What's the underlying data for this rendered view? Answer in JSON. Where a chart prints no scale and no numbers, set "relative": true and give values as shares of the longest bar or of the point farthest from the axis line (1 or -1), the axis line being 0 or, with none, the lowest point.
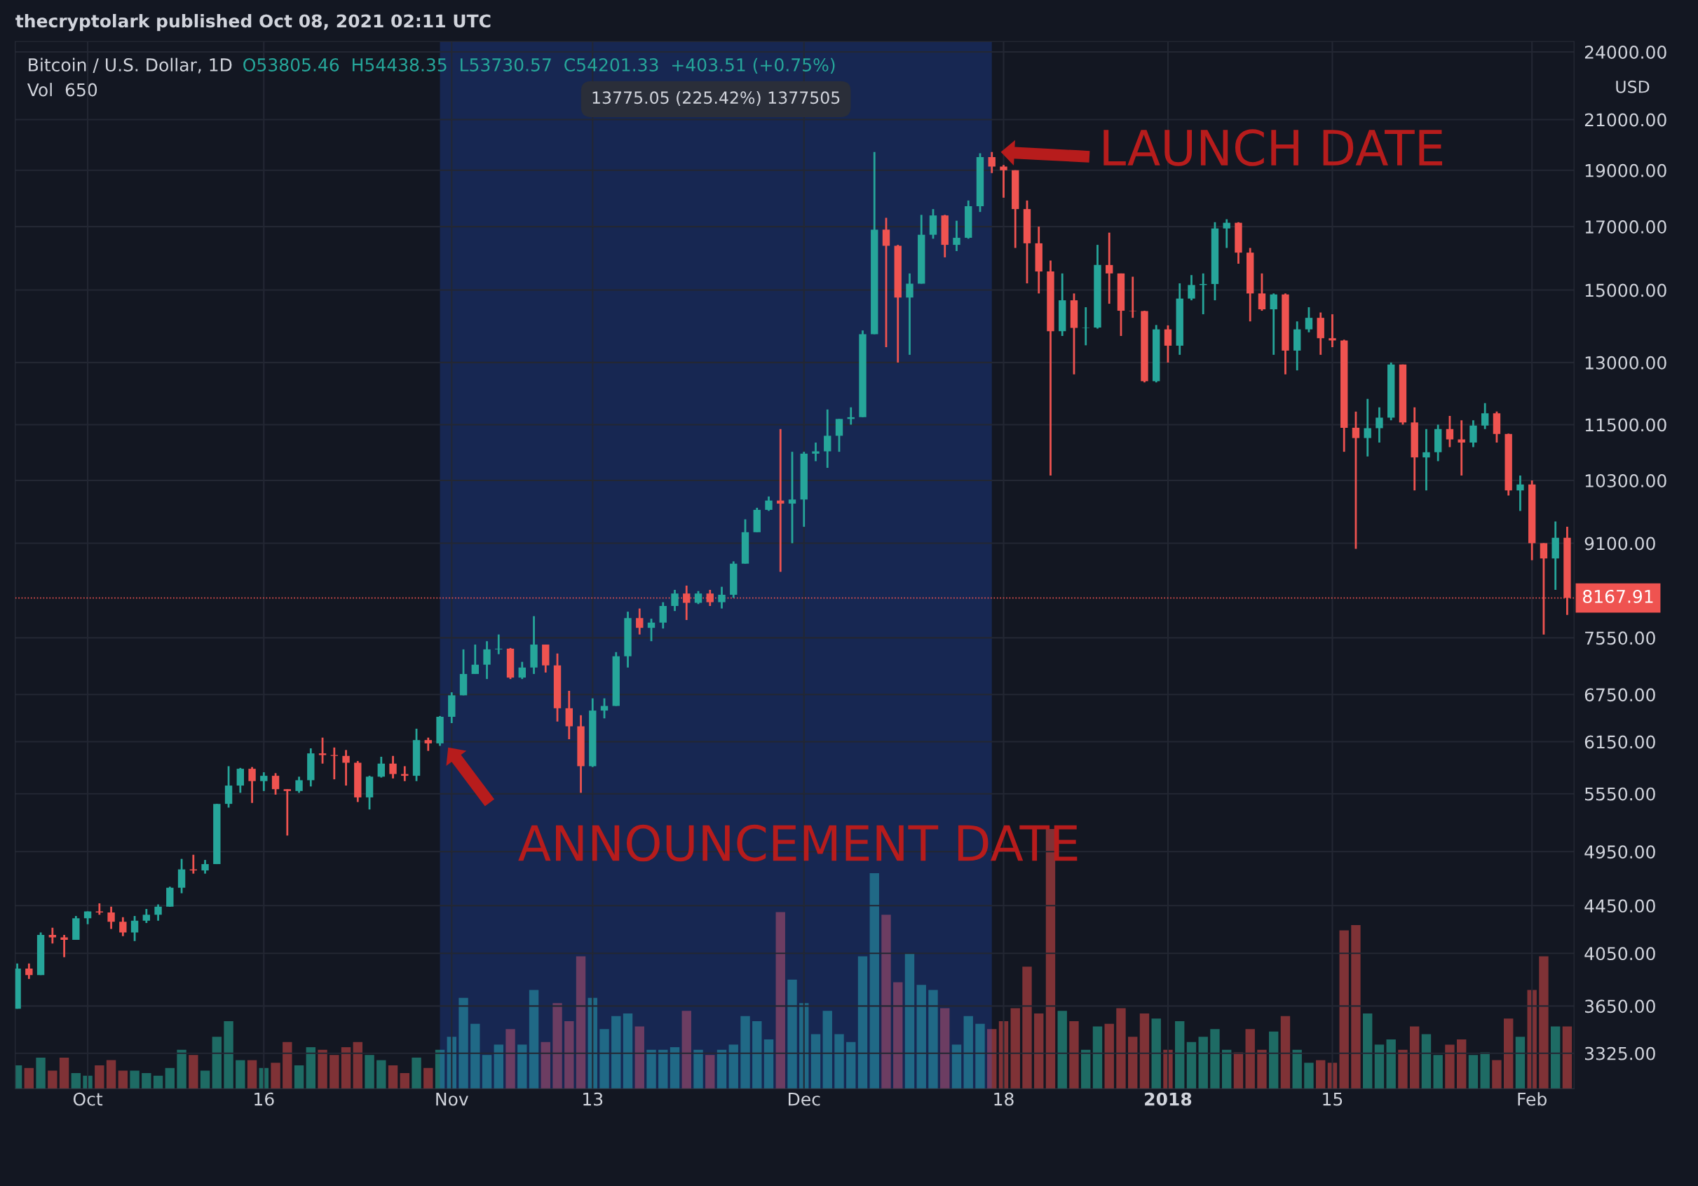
{
  "chart_data": [
    {
      "type": "candlestick",
      "title": "Bitcoin / U.S. Dollar, 1D",
      "subtitle": "O53805.46  H54438.35  L53730.57  C54201.33  +403.51 (+0.75%)",
      "ylabel": "USD",
      "annotations": [
        "thecryptolark published Oct 08, 2021 02:11 UTC",
        {
          "text": "LAUNCH DATE",
          "x": "2017-12-17",
          "y": 19700
        },
        {
          "text": "ANNOUNCEMENT DATE",
          "x": "2017-10-31",
          "y": 6100
        }
      ],
      "x": [
        "2017-09-25",
        "2017-09-26",
        "2017-09-27",
        "2017-09-28",
        "2017-09-29",
        "2017-09-30",
        "2017-10-01",
        "2017-10-02",
        "2017-10-03",
        "2017-10-04",
        "2017-10-05",
        "2017-10-06",
        "2017-10-07",
        "2017-10-08",
        "2017-10-09",
        "2017-10-10",
        "2017-10-11",
        "2017-10-12",
        "2017-10-13",
        "2017-10-14",
        "2017-10-15",
        "2017-10-16",
        "2017-10-17",
        "2017-10-18",
        "2017-10-19",
        "2017-10-20",
        "2017-10-21",
        "2017-10-22",
        "2017-10-23",
        "2017-10-24",
        "2017-10-25",
        "2017-10-26",
        "2017-10-27",
        "2017-10-28",
        "2017-10-29",
        "2017-10-30",
        "2017-10-31",
        "2017-11-01",
        "2017-11-02",
        "2017-11-03",
        "2017-11-04",
        "2017-11-05",
        "2017-11-06",
        "2017-11-07",
        "2017-11-08",
        "2017-11-09",
        "2017-11-10",
        "2017-11-11",
        "2017-11-12",
        "2017-11-13",
        "2017-11-14",
        "2017-11-15",
        "2017-11-16",
        "2017-11-17",
        "2017-11-18",
        "2017-11-19",
        "2017-11-20",
        "2017-11-21",
        "2017-11-22",
        "2017-11-23",
        "2017-11-24",
        "2017-11-25",
        "2017-11-26",
        "2017-11-27",
        "2017-11-28",
        "2017-11-29",
        "2017-11-30",
        "2017-12-01",
        "2017-12-02",
        "2017-12-03",
        "2017-12-04",
        "2017-12-05",
        "2017-12-06",
        "2017-12-07",
        "2017-12-08",
        "2017-12-09",
        "2017-12-10",
        "2017-12-11",
        "2017-12-12",
        "2017-12-13",
        "2017-12-14",
        "2017-12-15",
        "2017-12-16",
        "2017-12-17",
        "2017-12-18",
        "2017-12-19",
        "2017-12-20",
        "2017-12-21",
        "2017-12-22",
        "2017-12-23",
        "2017-12-24",
        "2017-12-25",
        "2017-12-26",
        "2017-12-27",
        "2017-12-28",
        "2017-12-29",
        "2017-12-30",
        "2017-12-31",
        "2018-01-01",
        "2018-01-02",
        "2018-01-03",
        "2018-01-04",
        "2018-01-05",
        "2018-01-06",
        "2018-01-07",
        "2018-01-08",
        "2018-01-09",
        "2018-01-10",
        "2018-01-11",
        "2018-01-12",
        "2018-01-13",
        "2018-01-14",
        "2018-01-15",
        "2018-01-16",
        "2018-01-17",
        "2018-01-18",
        "2018-01-19",
        "2018-01-20",
        "2018-01-21",
        "2018-01-22",
        "2018-01-23",
        "2018-01-24",
        "2018-01-25",
        "2018-01-26",
        "2018-01-27",
        "2018-01-28",
        "2018-01-29",
        "2018-01-30",
        "2018-01-31",
        "2018-02-01",
        "2018-02-02",
        "2018-02-03",
        "2018-02-04"
      ],
      "ohlc": [
        [
          3630,
          3970,
          3630,
          3930
        ],
        [
          3930,
          3970,
          3850,
          3880
        ],
        [
          3880,
          4220,
          3880,
          4200
        ],
        [
          4200,
          4260,
          4130,
          4180
        ],
        [
          4180,
          4200,
          4020,
          4160
        ],
        [
          4160,
          4360,
          4160,
          4340
        ],
        [
          4340,
          4400,
          4290,
          4400
        ],
        [
          4400,
          4470,
          4370,
          4390
        ],
        [
          4390,
          4440,
          4250,
          4310
        ],
        [
          4310,
          4350,
          4190,
          4220
        ],
        [
          4220,
          4360,
          4150,
          4320
        ],
        [
          4320,
          4420,
          4300,
          4370
        ],
        [
          4370,
          4460,
          4320,
          4440
        ],
        [
          4440,
          4620,
          4440,
          4610
        ],
        [
          4610,
          4880,
          4560,
          4780
        ],
        [
          4780,
          4920,
          4740,
          4770
        ],
        [
          4770,
          4870,
          4740,
          4830
        ],
        [
          4830,
          5440,
          4830,
          5440
        ],
        [
          5440,
          5860,
          5400,
          5640
        ],
        [
          5640,
          5840,
          5560,
          5830
        ],
        [
          5830,
          5850,
          5450,
          5690
        ],
        [
          5690,
          5790,
          5580,
          5750
        ],
        [
          5750,
          5780,
          5540,
          5600
        ],
        [
          5600,
          5600,
          5110,
          5580
        ],
        [
          5580,
          5740,
          5560,
          5700
        ],
        [
          5700,
          6070,
          5630,
          6010
        ],
        [
          6010,
          6200,
          5890,
          5990
        ],
        [
          5990,
          6080,
          5710,
          5980
        ],
        [
          5980,
          6050,
          5640,
          5900
        ],
        [
          5900,
          5920,
          5460,
          5510
        ],
        [
          5510,
          5750,
          5380,
          5740
        ],
        [
          5740,
          5970,
          5730,
          5890
        ],
        [
          5890,
          5980,
          5720,
          5770
        ],
        [
          5770,
          5860,
          5690,
          5750
        ],
        [
          5750,
          6310,
          5690,
          6170
        ],
        [
          6170,
          6200,
          6040,
          6130
        ],
        [
          6130,
          6470,
          6100,
          6460
        ],
        [
          6460,
          6780,
          6380,
          6740
        ],
        [
          6740,
          7380,
          6740,
          7030
        ],
        [
          7030,
          7450,
          7030,
          7160
        ],
        [
          7160,
          7500,
          6960,
          7380
        ],
        [
          7380,
          7600,
          7310,
          7390
        ],
        [
          7390,
          7400,
          6960,
          6980
        ],
        [
          6980,
          7200,
          6960,
          7120
        ],
        [
          7120,
          7880,
          7030,
          7450
        ],
        [
          7450,
          7450,
          7050,
          7150
        ],
        [
          7150,
          7320,
          6400,
          6570
        ],
        [
          6570,
          6800,
          6180,
          6340
        ],
        [
          6340,
          6480,
          5560,
          5860
        ],
        [
          5860,
          6700,
          5850,
          6540
        ],
        [
          6540,
          6700,
          6440,
          6600
        ],
        [
          6600,
          7340,
          6600,
          7280
        ],
        [
          7280,
          7950,
          7120,
          7850
        ],
        [
          7850,
          8000,
          7600,
          7700
        ],
        [
          7700,
          7840,
          7500,
          7780
        ],
        [
          7780,
          8100,
          7690,
          8040
        ],
        [
          8040,
          8300,
          7960,
          8240
        ],
        [
          8240,
          8370,
          7820,
          8090
        ],
        [
          8090,
          8280,
          8070,
          8240
        ],
        [
          8240,
          8300,
          8040,
          8100
        ],
        [
          8100,
          8350,
          8000,
          8220
        ],
        [
          8220,
          8780,
          8170,
          8740
        ],
        [
          8740,
          9540,
          8740,
          9300
        ],
        [
          9300,
          9760,
          9300,
          9720
        ],
        [
          9720,
          9980,
          9700,
          9900
        ],
        [
          9900,
          11400,
          8600,
          9840
        ],
        [
          9840,
          10900,
          9100,
          9920
        ],
        [
          9920,
          10900,
          9400,
          10860
        ],
        [
          10860,
          11100,
          10700,
          10910
        ],
        [
          10910,
          11850,
          10560,
          11250
        ],
        [
          11250,
          11630,
          10900,
          11630
        ],
        [
          11630,
          11900,
          11500,
          11670
        ],
        [
          11670,
          13850,
          11670,
          13750
        ],
        [
          13750,
          19700,
          13750,
          16900
        ],
        [
          16900,
          17300,
          13400,
          16370
        ],
        [
          16370,
          16400,
          13000,
          14780
        ],
        [
          14780,
          15500,
          13200,
          15190
        ],
        [
          15190,
          17400,
          15190,
          16730
        ],
        [
          16730,
          17600,
          16600,
          17380
        ],
        [
          17380,
          17400,
          16000,
          16400
        ],
        [
          16400,
          17200,
          16200,
          16630
        ],
        [
          16630,
          17900,
          16600,
          17700
        ],
        [
          17700,
          19650,
          17500,
          19500
        ],
        [
          19500,
          19700,
          18900,
          19140
        ],
        [
          19140,
          19200,
          18000,
          19000
        ],
        [
          19000,
          19000,
          16300,
          17600
        ],
        [
          17600,
          17900,
          15200,
          16450
        ],
        [
          16450,
          17000,
          14900,
          15560
        ],
        [
          15560,
          15900,
          10400,
          13830
        ],
        [
          13830,
          15500,
          13700,
          14700
        ],
        [
          14700,
          14900,
          12700,
          13920
        ],
        [
          13920,
          14500,
          13450,
          13930
        ],
        [
          13930,
          16400,
          13900,
          15760
        ],
        [
          15760,
          16800,
          14600,
          15500
        ],
        [
          15500,
          15500,
          13700,
          14400
        ],
        [
          14400,
          15400,
          14200,
          14390
        ],
        [
          14390,
          14400,
          12500,
          12530
        ],
        [
          12530,
          14000,
          12500,
          13880
        ],
        [
          13880,
          13990,
          13000,
          13440
        ],
        [
          13440,
          15200,
          13200,
          14750
        ],
        [
          14750,
          15450,
          14700,
          15150
        ],
        [
          15150,
          15500,
          14300,
          15180
        ],
        [
          15180,
          17150,
          14700,
          16940
        ],
        [
          16940,
          17250,
          16300,
          17130
        ],
        [
          17130,
          17150,
          15800,
          16150
        ],
        [
          16150,
          16300,
          14100,
          14900
        ],
        [
          14900,
          15500,
          14400,
          14440
        ],
        [
          14440,
          14900,
          13200,
          14870
        ],
        [
          14870,
          14900,
          12700,
          13310
        ],
        [
          13310,
          14100,
          12800,
          13880
        ],
        [
          13880,
          14500,
          13800,
          14200
        ],
        [
          14200,
          14350,
          13200,
          13640
        ],
        [
          13640,
          14300,
          13400,
          13580
        ],
        [
          13580,
          13600,
          10900,
          11430
        ],
        [
          11430,
          11800,
          9000,
          11200
        ],
        [
          11200,
          12100,
          10800,
          11420
        ],
        [
          11420,
          11900,
          11100,
          11660
        ],
        [
          11660,
          13000,
          11600,
          12950
        ],
        [
          12950,
          12950,
          11500,
          11550
        ],
        [
          11550,
          11900,
          10100,
          10780
        ],
        [
          10780,
          11400,
          10100,
          10890
        ],
        [
          10890,
          11500,
          10700,
          11400
        ],
        [
          11400,
          11700,
          11000,
          11170
        ],
        [
          11170,
          11600,
          10400,
          11100
        ],
        [
          11100,
          11600,
          11000,
          11480
        ],
        [
          11480,
          12000,
          11400,
          11760
        ],
        [
          11760,
          11800,
          11100,
          11290
        ],
        [
          11290,
          11300,
          10000,
          10100
        ],
        [
          10100,
          10400,
          9700,
          10220
        ],
        [
          10220,
          10300,
          8800,
          9100
        ],
        [
          9100,
          9100,
          7600,
          8830
        ],
        [
          8830,
          9500,
          8300,
          9200
        ],
        [
          9200,
          9400,
          7900,
          8170
        ]
      ],
      "colors": [
        "#26a69a",
        "#ef5350",
        "#26a69a",
        "#ef5350",
        "#ef5350",
        "#26a69a",
        "#26a69a",
        "#ef5350",
        "#ef5350",
        "#ef5350",
        "#26a69a",
        "#26a69a",
        "#26a69a",
        "#26a69a",
        "#26a69a",
        "#ef5350",
        "#26a69a",
        "#26a69a",
        "#26a69a",
        "#26a69a",
        "#ef5350",
        "#26a69a",
        "#ef5350",
        "#ef5350",
        "#26a69a",
        "#26a69a",
        "#ef5350",
        "#ef5350",
        "#ef5350",
        "#ef5350",
        "#26a69a",
        "#26a69a",
        "#ef5350",
        "#ef5350",
        "#26a69a",
        "#ef5350",
        "#26a69a",
        "#26a69a",
        "#26a69a",
        "#26a69a",
        "#26a69a",
        "#26a69a",
        "#ef5350",
        "#26a69a",
        "#26a69a",
        "#ef5350",
        "#ef5350",
        "#ef5350",
        "#ef5350",
        "#26a69a",
        "#26a69a",
        "#26a69a",
        "#26a69a",
        "#ef5350",
        "#26a69a",
        "#26a69a",
        "#26a69a",
        "#ef5350",
        "#26a69a",
        "#ef5350",
        "#26a69a",
        "#26a69a",
        "#26a69a",
        "#26a69a",
        "#26a69a",
        "#ef5350",
        "#26a69a",
        "#26a69a",
        "#26a69a",
        "#26a69a",
        "#26a69a",
        "#26a69a",
        "#26a69a",
        "#26a69a",
        "#ef5350",
        "#ef5350",
        "#26a69a",
        "#26a69a",
        "#26a69a",
        "#ef5350",
        "#26a69a",
        "#26a69a",
        "#26a69a",
        "#ef5350",
        "#ef5350",
        "#ef5350",
        "#ef5350",
        "#ef5350",
        "#ef5350",
        "#26a69a",
        "#ef5350",
        "#26a69a",
        "#26a69a",
        "#ef5350",
        "#ef5350",
        "#ef5350",
        "#ef5350",
        "#26a69a",
        "#ef5350",
        "#26a69a",
        "#26a69a",
        "#26a69a",
        "#26a69a",
        "#26a69a",
        "#ef5350",
        "#ef5350",
        "#ef5350",
        "#26a69a",
        "#ef5350",
        "#26a69a",
        "#26a69a",
        "#ef5350",
        "#ef5350",
        "#ef5350",
        "#ef5350",
        "#26a69a",
        "#26a69a",
        "#26a69a",
        "#ef5350",
        "#ef5350",
        "#26a69a",
        "#26a69a",
        "#ef5350",
        "#ef5350",
        "#26a69a",
        "#26a69a",
        "#ef5350",
        "#ef5350",
        "#26a69a",
        "#ef5350",
        "#ef5350",
        "#26a69a",
        "#ef5350"
      ],
      "xlim": [
        "2017-09-24T20:00",
        "2018-02-04T14:00"
      ],
      "xticks": [
        {
          "value": "2017-10-01",
          "label": "Oct"
        },
        {
          "value": "2017-10-16",
          "label": "16"
        },
        {
          "value": "2017-11-01",
          "label": "Nov"
        },
        {
          "value": "2017-11-13",
          "label": "13"
        },
        {
          "value": "2017-12-01",
          "label": "Dec"
        },
        {
          "value": "2017-12-18",
          "label": "18"
        },
        {
          "value": "2018-01-01",
          "label": "2018"
        },
        {
          "value": "2018-01-15",
          "label": "15"
        },
        {
          "value": "2018-02-01",
          "label": "Feb"
        }
      ],
      "log": true,
      "ylim": [
        3100,
        24500
      ],
      "yticks": [
        {
          "value": 24000,
          "label": "24000.00"
        },
        {
          "value": 21000,
          "label": "21000.00"
        },
        {
          "value": 19000,
          "label": "19000.00"
        },
        {
          "value": 17000,
          "label": "17000.00"
        },
        {
          "value": 15000,
          "label": "15000.00"
        },
        {
          "value": 13000,
          "label": "13000.00"
        },
        {
          "value": 11500,
          "label": "11500.00"
        },
        {
          "value": 10300,
          "label": "10300.00"
        },
        {
          "value": 9100,
          "label": "9100.00"
        },
        {
          "value": 7550,
          "label": "7550.00"
        },
        {
          "value": 6750,
          "label": "6750.00"
        },
        {
          "value": 6150,
          "label": "6150.00"
        },
        {
          "value": 5550,
          "label": "5550.00"
        },
        {
          "value": 4950,
          "label": "4950.00"
        },
        {
          "value": 4450,
          "label": "4450.00"
        },
        {
          "value": 4050,
          "label": "4050.00"
        },
        {
          "value": 3650,
          "label": "3650.00"
        },
        {
          "value": 3325,
          "label": "3325.00"
        }
      ],
      "ref_lines": [
        {
          "axis": "y",
          "value": 8167.91,
          "label": "8167.91",
          "color": "#ef5350",
          "line_style": "dotted"
        }
      ],
      "bands": [
        {
          "axis": "x",
          "from": "2017-10-31",
          "to": "2017-12-17",
          "label": "13775.05 (225.42%) 1377505",
          "color": "#2962ff"
        }
      ],
      "grid": true
    },
    {
      "type": "bar",
      "title": "Vol  650",
      "relative": true,
      "x": [
        "2017-09-25",
        "2017-09-26",
        "2017-09-27",
        "2017-09-28",
        "2017-09-29",
        "2017-09-30",
        "2017-10-01",
        "2017-10-02",
        "2017-10-03",
        "2017-10-04",
        "2017-10-05",
        "2017-10-06",
        "2017-10-07",
        "2017-10-08",
        "2017-10-09",
        "2017-10-10",
        "2017-10-11",
        "2017-10-12",
        "2017-10-13",
        "2017-10-14",
        "2017-10-15",
        "2017-10-16",
        "2017-10-17",
        "2017-10-18",
        "2017-10-19",
        "2017-10-20",
        "2017-10-21",
        "2017-10-22",
        "2017-10-23",
        "2017-10-24",
        "2017-10-25",
        "2017-10-26",
        "2017-10-27",
        "2017-10-28",
        "2017-10-29",
        "2017-10-30",
        "2017-10-31",
        "2017-11-01",
        "2017-11-02",
        "2017-11-03",
        "2017-11-04",
        "2017-11-05",
        "2017-11-06",
        "2017-11-07",
        "2017-11-08",
        "2017-11-09",
        "2017-11-10",
        "2017-11-11",
        "2017-11-12",
        "2017-11-13",
        "2017-11-14",
        "2017-11-15",
        "2017-11-16",
        "2017-11-17",
        "2017-11-18",
        "2017-11-19",
        "2017-11-20",
        "2017-11-21",
        "2017-11-22",
        "2017-11-23",
        "2017-11-24",
        "2017-11-25",
        "2017-11-26",
        "2017-11-27",
        "2017-11-28",
        "2017-11-29",
        "2017-11-30",
        "2017-12-01",
        "2017-12-02",
        "2017-12-03",
        "2017-12-04",
        "2017-12-05",
        "2017-12-06",
        "2017-12-07",
        "2017-12-08",
        "2017-12-09",
        "2017-12-10",
        "2017-12-11",
        "2017-12-12",
        "2017-12-13",
        "2017-12-14",
        "2017-12-15",
        "2017-12-16",
        "2017-12-17",
        "2017-12-18",
        "2017-12-19",
        "2017-12-20",
        "2017-12-21",
        "2017-12-22",
        "2017-12-23",
        "2017-12-24",
        "2017-12-25",
        "2017-12-26",
        "2017-12-27",
        "2017-12-28",
        "2017-12-29",
        "2017-12-30",
        "2017-12-31",
        "2018-01-01",
        "2018-01-02",
        "2018-01-03",
        "2018-01-04",
        "2018-01-05",
        "2018-01-06",
        "2018-01-07",
        "2018-01-08",
        "2018-01-09",
        "2018-01-10",
        "2018-01-11",
        "2018-01-12",
        "2018-01-13",
        "2018-01-14",
        "2018-01-15",
        "2018-01-16",
        "2018-01-17",
        "2018-01-18",
        "2018-01-19",
        "2018-01-20",
        "2018-01-21",
        "2018-01-22",
        "2018-01-23",
        "2018-01-24",
        "2018-01-25",
        "2018-01-26",
        "2018-01-27",
        "2018-01-28",
        "2018-01-29",
        "2018-01-30",
        "2018-01-31",
        "2018-02-01",
        "2018-02-02",
        "2018-02-03",
        "2018-02-04"
      ],
      "values": [
        0.09,
        0.08,
        0.12,
        0.07,
        0.12,
        0.06,
        0.05,
        0.09,
        0.11,
        0.07,
        0.07,
        0.06,
        0.05,
        0.08,
        0.15,
        0.13,
        0.07,
        0.2,
        0.26,
        0.11,
        0.11,
        0.08,
        0.1,
        0.18,
        0.09,
        0.16,
        0.15,
        0.13,
        0.16,
        0.18,
        0.13,
        0.11,
        0.09,
        0.06,
        0.12,
        0.08,
        0.15,
        0.2,
        0.35,
        0.25,
        0.13,
        0.17,
        0.23,
        0.17,
        0.38,
        0.18,
        0.33,
        0.26,
        0.51,
        0.35,
        0.23,
        0.28,
        0.29,
        0.24,
        0.15,
        0.15,
        0.16,
        0.3,
        0.15,
        0.13,
        0.15,
        0.17,
        0.28,
        0.26,
        0.19,
        0.68,
        0.42,
        0.33,
        0.21,
        0.3,
        0.21,
        0.18,
        0.51,
        0.83,
        0.67,
        0.41,
        0.52,
        0.4,
        0.38,
        0.31,
        0.17,
        0.28,
        0.25,
        0.23,
        0.26,
        0.31,
        0.47,
        0.29,
        1,
        0.3,
        0.26,
        0.15,
        0.24,
        0.25,
        0.31,
        0.2,
        0.29,
        0.27,
        0.15,
        0.26,
        0.18,
        0.2,
        0.23,
        0.15,
        0.14,
        0.23,
        0.15,
        0.22,
        0.28,
        0.15,
        0.1,
        0.11,
        0.1,
        0.61,
        0.63,
        0.29,
        0.17,
        0.19,
        0.15,
        0.24,
        0.21,
        0.13,
        0.17,
        0.19,
        0.13,
        0.14,
        0.11,
        0.27,
        0.2,
        0.38,
        0.51,
        0.24,
        0.24
      ],
      "colors": [
        "#1e6b64",
        "#7f3236",
        "#1e6b64",
        "#7f3236",
        "#7f3236",
        "#1e6b64",
        "#1e6b64",
        "#7f3236",
        "#7f3236",
        "#7f3236",
        "#1e6b64",
        "#1e6b64",
        "#1e6b64",
        "#1e6b64",
        "#1e6b64",
        "#7f3236",
        "#1e6b64",
        "#1e6b64",
        "#1e6b64",
        "#1e6b64",
        "#7f3236",
        "#1e6b64",
        "#7f3236",
        "#7f3236",
        "#1e6b64",
        "#1e6b64",
        "#7f3236",
        "#7f3236",
        "#7f3236",
        "#7f3236",
        "#1e6b64",
        "#1e6b64",
        "#7f3236",
        "#7f3236",
        "#1e6b64",
        "#7f3236",
        "#1e6b64",
        "#1e6b64",
        "#1e6b64",
        "#1e6b64",
        "#1e6b64",
        "#1e6b64",
        "#7f3236",
        "#1e6b64",
        "#1e6b64",
        "#7f3236",
        "#7f3236",
        "#7f3236",
        "#7f3236",
        "#1e6b64",
        "#1e6b64",
        "#1e6b64",
        "#1e6b64",
        "#7f3236",
        "#1e6b64",
        "#1e6b64",
        "#1e6b64",
        "#7f3236",
        "#1e6b64",
        "#7f3236",
        "#1e6b64",
        "#1e6b64",
        "#1e6b64",
        "#1e6b64",
        "#1e6b64",
        "#7f3236",
        "#1e6b64",
        "#1e6b64",
        "#1e6b64",
        "#1e6b64",
        "#1e6b64",
        "#1e6b64",
        "#1e6b64",
        "#1e6b64",
        "#7f3236",
        "#7f3236",
        "#1e6b64",
        "#1e6b64",
        "#1e6b64",
        "#7f3236",
        "#1e6b64",
        "#1e6b64",
        "#1e6b64",
        "#7f3236",
        "#7f3236",
        "#7f3236",
        "#7f3236",
        "#7f3236",
        "#7f3236",
        "#1e6b64",
        "#7f3236",
        "#1e6b64",
        "#1e6b64",
        "#7f3236",
        "#7f3236",
        "#7f3236",
        "#7f3236",
        "#1e6b64",
        "#7f3236",
        "#1e6b64",
        "#1e6b64",
        "#1e6b64",
        "#1e6b64",
        "#1e6b64",
        "#7f3236",
        "#7f3236",
        "#7f3236",
        "#1e6b64",
        "#7f3236",
        "#1e6b64",
        "#1e6b64",
        "#7f3236",
        "#7f3236",
        "#7f3236",
        "#7f3236",
        "#1e6b64",
        "#1e6b64",
        "#1e6b64",
        "#7f3236",
        "#7f3236",
        "#1e6b64",
        "#1e6b64",
        "#7f3236",
        "#7f3236",
        "#1e6b64",
        "#1e6b64",
        "#7f3236",
        "#7f3236",
        "#1e6b64",
        "#7f3236",
        "#7f3236",
        "#1e6b64",
        "#7f3236"
      ],
      "xlim": [
        "2017-09-24T20:00",
        "2018-02-04T14:00"
      ]
    }
  ]
}
